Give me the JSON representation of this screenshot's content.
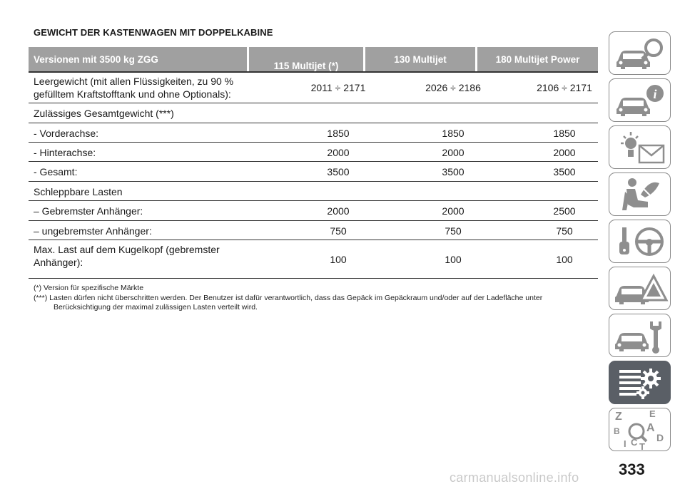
{
  "title": "GEWICHT DER KASTENWAGEN MIT DOPPELKABINE",
  "table": {
    "headers": [
      "Versionen mit 3500 kg ZGG",
      "115 Multijet (*)",
      "130 Multijet",
      "180 Multijet Power"
    ],
    "rows": [
      {
        "label": "Leergewicht (mit allen Flüssigkeiten, zu 90 %\ngefülltem Kraftstofftank und ohne Optionals):",
        "values": [
          "2011 ÷ 2171",
          "2026 ÷ 2186",
          "2106 ÷ 2171"
        ]
      },
      {
        "label": "Zulässiges Gesamtgewicht (***)",
        "values": [
          "",
          "",
          ""
        ]
      },
      {
        "label": "- Vorderachse:",
        "values": [
          "1850",
          "1850",
          "1850"
        ]
      },
      {
        "label": "- Hinterachse:",
        "values": [
          "2000",
          "2000",
          "2000"
        ]
      },
      {
        "label": "- Gesamt:",
        "values": [
          "3500",
          "3500",
          "3500"
        ]
      },
      {
        "label": "Schleppbare Lasten",
        "values": [
          "",
          "",
          ""
        ]
      },
      {
        "label": "– Gebremster Anhänger:",
        "values": [
          "2000",
          "2000",
          "2500"
        ]
      },
      {
        "label": "– ungebremster Anhänger:",
        "values": [
          "750",
          "750",
          "750"
        ]
      },
      {
        "label": "Max. Last auf dem Kugelkopf (gebremster\nAnhänger):",
        "values": [
          "100",
          "100",
          "100"
        ]
      }
    ]
  },
  "notes": [
    "(*) Version für spezifische Märkte",
    "(***) Lasten dürfen nicht überschritten werden. Der Benutzer ist dafür verantwortlich, dass das Gepäck im Gepäckraum und/oder auf der Ladefläche unter Berücksichtigung der maximal zulässigen Lasten verteilt wird."
  ],
  "sidebar": {
    "tabs": [
      {
        "icon": "car-magnifier-icon",
        "active": false
      },
      {
        "icon": "car-info-icon",
        "active": false
      },
      {
        "icon": "warning-light-envelope-icon",
        "active": false
      },
      {
        "icon": "seated-passenger-airbag-icon",
        "active": false
      },
      {
        "icon": "key-steering-wheel-icon",
        "active": false
      },
      {
        "icon": "car-warning-triangle-icon",
        "active": false
      },
      {
        "icon": "car-wrench-icon",
        "active": false
      },
      {
        "icon": "spec-list-gears-icon",
        "active": true
      },
      {
        "icon": "alphabet-index-icon",
        "active": false
      }
    ],
    "index_letters": [
      "Z",
      "E",
      "B",
      "A",
      "I",
      "C",
      "T",
      "D"
    ]
  },
  "page_number": "333",
  "watermark": "carmanualsonline.info",
  "colors": {
    "header_bg": "#a0a0a0",
    "active_tab": "#5a5f66",
    "tab_border": "#8a8a8a",
    "icon_gray": "#8e8e8e"
  }
}
